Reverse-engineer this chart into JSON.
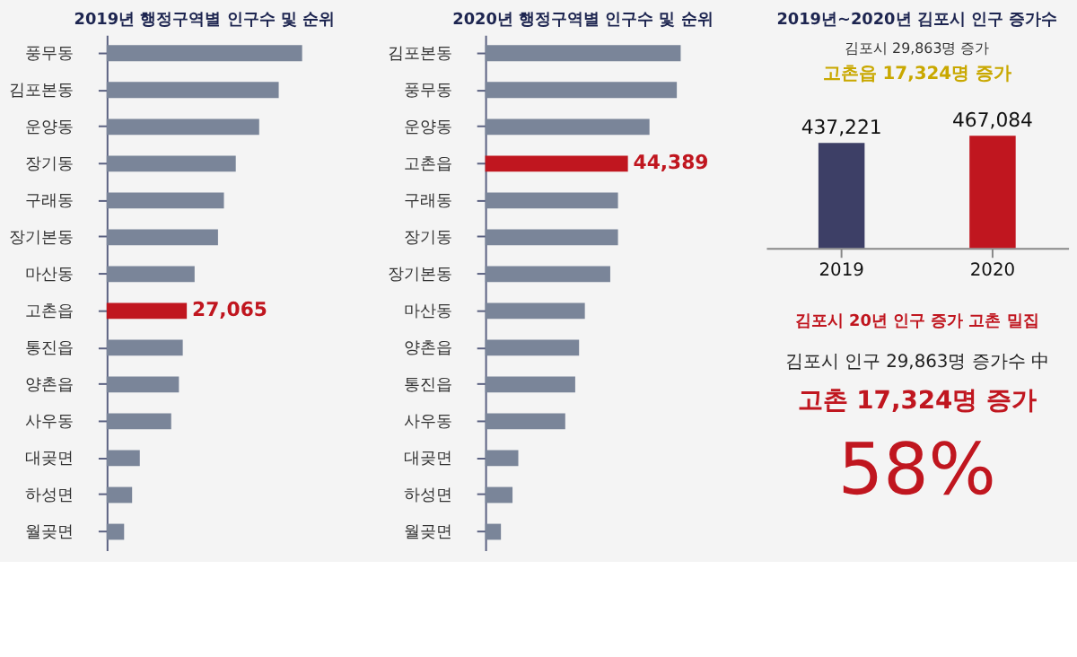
{
  "chart_data": [
    {
      "type": "bar",
      "orientation": "horizontal",
      "tick_labels": "y",
      "title": "2019년 행정구역별 인구수 및 순위",
      "categories": [
        "풍무동",
        "김포본동",
        "운양동",
        "장기동",
        "구래동",
        "장기본동",
        "마산동",
        "고촌읍",
        "통진읍",
        "양촌읍",
        "사우동",
        "대곶면",
        "하성면",
        "월곶면"
      ],
      "values": [
        66000,
        58100,
        51500,
        43600,
        39600,
        37600,
        29700,
        27065,
        25700,
        24400,
        21800,
        11200,
        8600,
        5900
      ],
      "value_labels": [
        null,
        null,
        null,
        null,
        null,
        null,
        null,
        "27,065",
        null,
        null,
        null,
        null,
        null,
        null
      ],
      "colors": [
        "#7a8599",
        "#7a8599",
        "#7a8599",
        "#7a8599",
        "#7a8599",
        "#7a8599",
        "#7a8599",
        "#c0161f",
        "#7a8599",
        "#7a8599",
        "#7a8599",
        "#7a8599",
        "#7a8599",
        "#7a8599"
      ]
    },
    {
      "type": "bar",
      "orientation": "horizontal",
      "tick_labels": "y",
      "title": "2020년 행정구역별 인구수 및 순위",
      "categories": [
        "김포본동",
        "풍무동",
        "운양동",
        "고촌읍",
        "구래동",
        "장기동",
        "장기본동",
        "마산동",
        "양촌읍",
        "통진읍",
        "사우동",
        "대곶면",
        "하성면",
        "월곶면"
      ],
      "values": [
        60800,
        59600,
        51100,
        44389,
        41300,
        41300,
        38900,
        31000,
        29200,
        28000,
        24900,
        10300,
        8500,
        4900
      ],
      "value_labels": [
        null,
        null,
        null,
        "44,389",
        null,
        null,
        null,
        null,
        null,
        null,
        null,
        null,
        null,
        null
      ],
      "colors": [
        "#7a8599",
        "#7a8599",
        "#7a8599",
        "#c0161f",
        "#7a8599",
        "#7a8599",
        "#7a8599",
        "#7a8599",
        "#7a8599",
        "#7a8599",
        "#7a8599",
        "#7a8599",
        "#7a8599",
        "#7a8599"
      ]
    },
    {
      "type": "bar",
      "title": "2019년~2020년 김포시 인구 증가수",
      "categories": [
        "2019",
        "2020"
      ],
      "values": [
        437221,
        467084
      ],
      "colors": [
        "#3d3f66",
        "#c0161f"
      ],
      "value_labels": [
        "437,221",
        "467,084"
      ],
      "annotations": [
        "김포시 29,863명 증가",
        "고촌읍 17,324명 증가"
      ]
    },
    {
      "type": "other",
      "title": "김포시 20년 인구 증가 고촌 밀집",
      "annotations": [
        "김포시 인구 29,863명 증가수 中",
        "고촌 17,324명 증가",
        "58%"
      ]
    }
  ]
}
